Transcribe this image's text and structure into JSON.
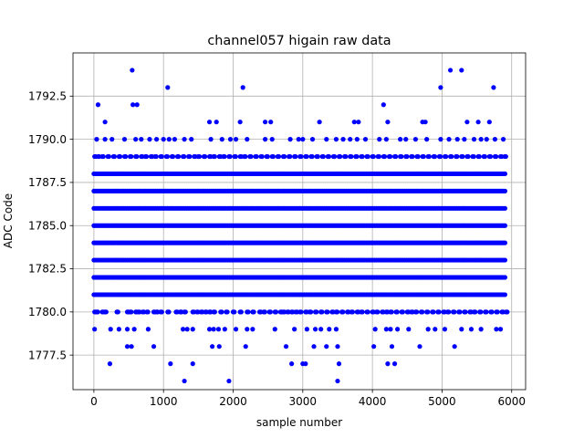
{
  "chart_data": {
    "type": "scatter",
    "title": "channel057 higain raw data",
    "xlabel": "sample number",
    "ylabel": "ADC Code",
    "xlim": [
      -300,
      6200
    ],
    "ylim": [
      1775.5,
      1795.0
    ],
    "xticks": [
      0,
      1000,
      2000,
      3000,
      4000,
      5000,
      6000
    ],
    "xtick_labels": [
      "0",
      "1000",
      "2000",
      "3000",
      "4000",
      "5000",
      "6000"
    ],
    "yticks": [
      1777.5,
      1780.0,
      1782.5,
      1785.0,
      1787.5,
      1790.0,
      1792.5
    ],
    "ytick_labels": [
      "1777.5",
      "1780.0",
      "1782.5",
      "1785.0",
      "1787.5",
      "1790.0",
      "1792.5"
    ],
    "grid": true,
    "marker_color": "#0000ff",
    "series": [
      {
        "x_range": [
          0,
          5920
        ],
        "dense_rows": [
          {
            "y": 1780,
            "x": [
              10,
              40,
              120,
              160,
              330,
              480,
              520,
              600,
              640,
              700,
              760,
              860,
              900,
              960,
              1060,
              1180,
              1240,
              1300,
              1420,
              1480,
              1540,
              1600,
              1660,
              1720,
              1820,
              1900,
              2000,
              2100,
              2200,
              2280,
              2380,
              2440,
              2520,
              2600,
              2680,
              2720,
              2780,
              2840,
              2900,
              2960,
              3040,
              3100,
              3180,
              3260,
              3340,
              3420,
              3480,
              3560,
              3640,
              3700,
              3780,
              3840,
              3920,
              4000,
              4060,
              4140,
              4200,
              4260,
              4340,
              4420,
              4500,
              4560,
              4620,
              4700,
              4780,
              4860,
              4940,
              5020,
              5080,
              5160,
              5240,
              5320,
              5400,
              5460,
              5540,
              5620,
              5700,
              5780,
              5860,
              5920
            ]
          },
          {
            "y": 1789,
            "x": [
              10,
              60,
              120,
              200,
              280,
              360,
              440,
              520,
              600,
              680,
              740,
              820,
              880,
              960,
              1040,
              1120,
              1200,
              1280,
              1360,
              1440,
              1500,
              1580,
              1660,
              1720,
              1800,
              1860,
              1940,
              2020,
              2100,
              2160,
              2240,
              2320,
              2400,
              2480,
              2560,
              2640,
              2720,
              2800,
              2880,
              2960,
              3040,
              3120,
              3200,
              3280,
              3360,
              3440,
              3520,
              3600,
              3680,
              3760,
              3840,
              3920,
              4000,
              4080,
              4160,
              4240,
              4320,
              4400,
              4480,
              4560,
              4640,
              4720,
              4800,
              4880,
              4960,
              5040,
              5120,
              5200,
              5280,
              5360,
              5440,
              5520,
              5600,
              5680,
              5760,
              5840,
              5900
            ]
          }
        ],
        "full_rows": [
          1781,
          1782,
          1783,
          1784,
          1785,
          1786,
          1787,
          1788
        ],
        "sparse_points": [
          [
            10,
            1779
          ],
          [
            240,
            1779
          ],
          [
            360,
            1779
          ],
          [
            480,
            1779
          ],
          [
            580,
            1779
          ],
          [
            780,
            1779
          ],
          [
            1280,
            1779
          ],
          [
            1340,
            1779
          ],
          [
            1420,
            1779
          ],
          [
            1660,
            1779
          ],
          [
            1720,
            1779
          ],
          [
            1790,
            1779
          ],
          [
            1880,
            1779
          ],
          [
            2040,
            1779
          ],
          [
            2200,
            1779
          ],
          [
            2280,
            1779
          ],
          [
            2600,
            1779
          ],
          [
            2880,
            1779
          ],
          [
            3060,
            1779
          ],
          [
            3180,
            1779
          ],
          [
            3260,
            1779
          ],
          [
            3380,
            1779
          ],
          [
            3480,
            1779
          ],
          [
            4040,
            1779
          ],
          [
            4200,
            1779
          ],
          [
            4260,
            1779
          ],
          [
            4360,
            1779
          ],
          [
            4520,
            1779
          ],
          [
            4800,
            1779
          ],
          [
            4900,
            1779
          ],
          [
            5040,
            1779
          ],
          [
            5280,
            1779
          ],
          [
            5420,
            1779
          ],
          [
            5560,
            1779
          ],
          [
            5780,
            1779
          ],
          [
            5840,
            1779
          ],
          [
            40,
            1790
          ],
          [
            160,
            1790
          ],
          [
            260,
            1790
          ],
          [
            440,
            1790
          ],
          [
            600,
            1790
          ],
          [
            680,
            1790
          ],
          [
            800,
            1790
          ],
          [
            900,
            1790
          ],
          [
            1000,
            1790
          ],
          [
            1080,
            1790
          ],
          [
            1160,
            1790
          ],
          [
            1300,
            1790
          ],
          [
            1400,
            1790
          ],
          [
            1680,
            1790
          ],
          [
            1840,
            1790
          ],
          [
            1960,
            1790
          ],
          [
            2040,
            1790
          ],
          [
            2200,
            1790
          ],
          [
            2460,
            1790
          ],
          [
            2560,
            1790
          ],
          [
            2820,
            1790
          ],
          [
            2940,
            1790
          ],
          [
            3000,
            1790
          ],
          [
            3140,
            1790
          ],
          [
            3340,
            1790
          ],
          [
            3480,
            1790
          ],
          [
            3580,
            1790
          ],
          [
            3680,
            1790
          ],
          [
            3780,
            1790
          ],
          [
            3900,
            1790
          ],
          [
            4100,
            1790
          ],
          [
            4200,
            1790
          ],
          [
            4400,
            1790
          ],
          [
            4480,
            1790
          ],
          [
            4620,
            1790
          ],
          [
            4780,
            1790
          ],
          [
            4980,
            1790
          ],
          [
            5100,
            1790
          ],
          [
            5220,
            1790
          ],
          [
            5320,
            1790
          ],
          [
            5460,
            1790
          ],
          [
            5560,
            1790
          ],
          [
            5640,
            1790
          ],
          [
            5760,
            1790
          ],
          [
            5880,
            1790
          ],
          [
            160,
            1791
          ],
          [
            1660,
            1791
          ],
          [
            1760,
            1791
          ],
          [
            2100,
            1791
          ],
          [
            2460,
            1791
          ],
          [
            2540,
            1791
          ],
          [
            3240,
            1791
          ],
          [
            3740,
            1791
          ],
          [
            3800,
            1791
          ],
          [
            4220,
            1791
          ],
          [
            4720,
            1791
          ],
          [
            4760,
            1791
          ],
          [
            5360,
            1791
          ],
          [
            5520,
            1791
          ],
          [
            5680,
            1791
          ],
          [
            60,
            1792
          ],
          [
            560,
            1792
          ],
          [
            620,
            1792
          ],
          [
            4160,
            1792
          ],
          [
            1060,
            1793
          ],
          [
            2140,
            1793
          ],
          [
            4980,
            1793
          ],
          [
            5740,
            1793
          ],
          [
            550,
            1794
          ],
          [
            5120,
            1794
          ],
          [
            5280,
            1794
          ],
          [
            480,
            1778
          ],
          [
            540,
            1778
          ],
          [
            860,
            1778
          ],
          [
            1700,
            1778
          ],
          [
            1800,
            1778
          ],
          [
            2180,
            1778
          ],
          [
            2760,
            1778
          ],
          [
            3160,
            1778
          ],
          [
            3340,
            1778
          ],
          [
            3500,
            1778
          ],
          [
            4020,
            1778
          ],
          [
            4280,
            1778
          ],
          [
            4680,
            1778
          ],
          [
            5180,
            1778
          ],
          [
            230,
            1777
          ],
          [
            1100,
            1777
          ],
          [
            1420,
            1777
          ],
          [
            2840,
            1777
          ],
          [
            3000,
            1777
          ],
          [
            3040,
            1777
          ],
          [
            3520,
            1777
          ],
          [
            4220,
            1777
          ],
          [
            4320,
            1777
          ],
          [
            1300,
            1776
          ],
          [
            1940,
            1776
          ],
          [
            3500,
            1776
          ]
        ]
      }
    ]
  }
}
